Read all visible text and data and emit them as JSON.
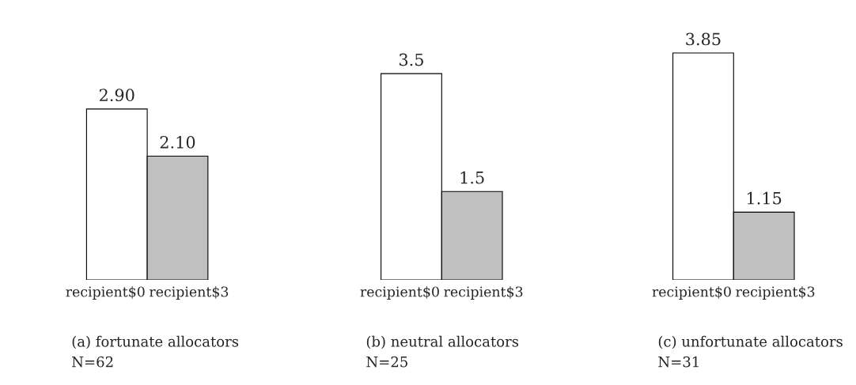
{
  "chart_data": [
    {
      "type": "bar",
      "title": "(a) fortunate allocators",
      "annotations": [
        "N=62"
      ],
      "categories": [
        "recipient$0",
        "recipient$3"
      ],
      "values": [
        2.9,
        2.1
      ],
      "colors": [
        "#ffffff",
        "#c0c0c0"
      ],
      "value_labels": [
        "2.90",
        "2.10"
      ]
    },
    {
      "type": "bar",
      "title": "(b) neutral allocators",
      "annotations": [
        "N=25"
      ],
      "categories": [
        "recipient$0",
        "recipient$3"
      ],
      "values": [
        3.5,
        1.5
      ],
      "colors": [
        "#ffffff",
        "#c0c0c0"
      ],
      "value_labels": [
        "3.5",
        "1.5"
      ]
    },
    {
      "type": "bar",
      "title": "(c) unfortunate allocators",
      "annotations": [
        "N=31"
      ],
      "categories": [
        "recipient$0",
        "recipient$3"
      ],
      "values": [
        3.85,
        1.15
      ],
      "colors": [
        "#ffffff",
        "#c0c0c0"
      ],
      "value_labels": [
        "3.85",
        "1.15"
      ]
    }
  ]
}
